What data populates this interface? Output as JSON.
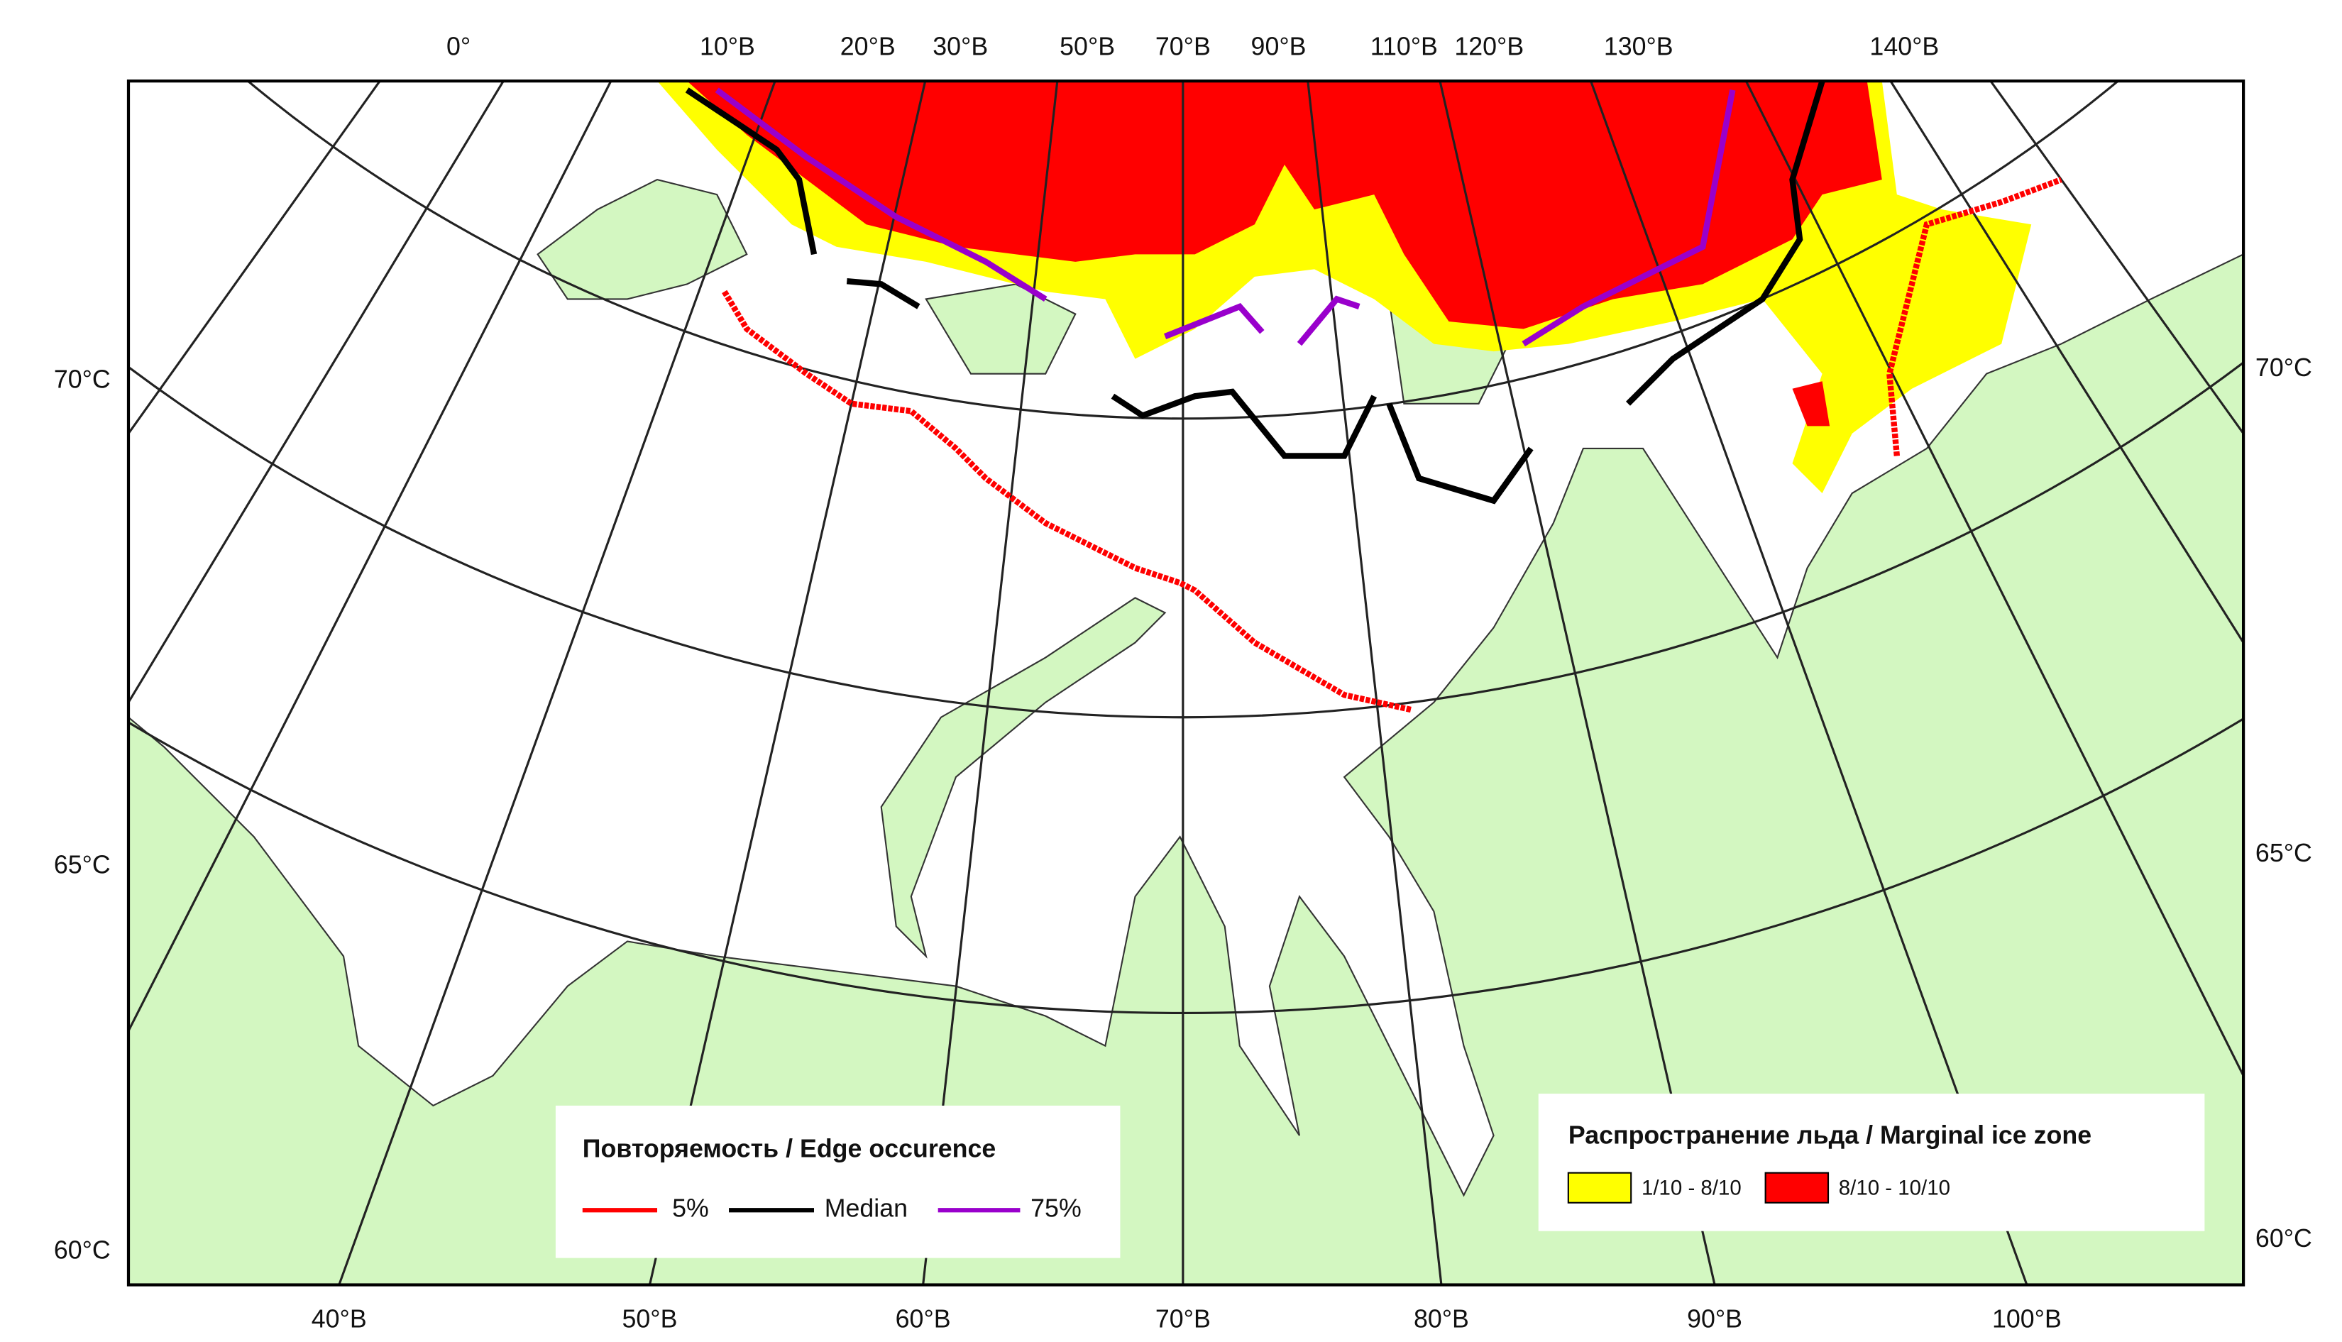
{
  "map": {
    "top_labels": [
      "0°",
      "10°В",
      "20°В",
      "30°В",
      "50°В",
      "70°В",
      "90°В",
      "110°В",
      "120°В",
      "130°В",
      "140°В"
    ],
    "bottom_labels": [
      "40°В",
      "50°В",
      "60°В",
      "70°В",
      "80°В",
      "90°В",
      "100°В"
    ],
    "left_labels": [
      "70°С",
      "65°С",
      "60°С"
    ],
    "right_labels": [
      "70°С",
      "65°С",
      "60°С"
    ]
  },
  "legend_edge": {
    "title": "Повторяемость / Edge occurence",
    "items": [
      "5%",
      "Median",
      "75%"
    ]
  },
  "legend_ice": {
    "title": "Распространение льда / Marginal ice zone",
    "items": [
      "1/10 - 8/10",
      "8/10 - 10/10"
    ]
  }
}
